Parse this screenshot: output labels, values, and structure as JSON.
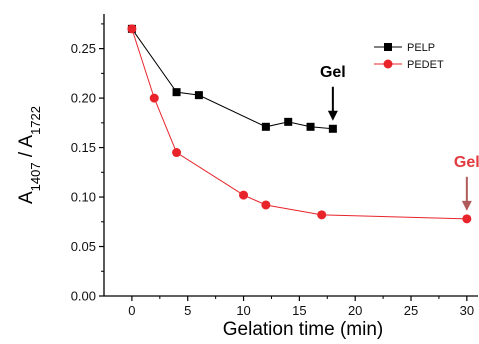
{
  "chart_data": {
    "type": "line",
    "title": "",
    "xlabel": "Gelation time (min)",
    "ylabel": {
      "base": "A",
      "sub1": "1407",
      "sep": " / ",
      "sub2": "1722"
    },
    "xlim": [
      -2.5,
      31
    ],
    "ylim": [
      0,
      0.285
    ],
    "xticks": [
      0,
      5,
      10,
      15,
      20,
      25,
      30
    ],
    "yticks": [
      0.0,
      0.05,
      0.1,
      0.15,
      0.2,
      0.25
    ],
    "ytick_labels": [
      "0.00",
      "0.05",
      "0.10",
      "0.15",
      "0.20",
      "0.25"
    ],
    "grid": false,
    "legend_position": "top-right",
    "series": [
      {
        "name": "PELP",
        "color": "#000000",
        "marker": "square",
        "x": [
          0,
          4,
          6,
          12,
          14,
          16,
          18
        ],
        "y": [
          0.27,
          0.206,
          0.203,
          0.171,
          0.176,
          0.171,
          0.169
        ]
      },
      {
        "name": "PEDET",
        "color": "#e8232a",
        "marker": "circle",
        "x": [
          0,
          2,
          4,
          10,
          12,
          17,
          30
        ],
        "y": [
          0.27,
          0.2,
          0.145,
          0.102,
          0.092,
          0.082,
          0.078
        ]
      }
    ],
    "annotations": [
      {
        "text": "Gel",
        "x": 18,
        "y": 0.169,
        "color": "#000000",
        "arrow_color": "#000000"
      },
      {
        "text": "Gel",
        "x": 30,
        "y": 0.078,
        "color": "#e23a3f",
        "arrow_color": "#b05a5a"
      }
    ]
  }
}
